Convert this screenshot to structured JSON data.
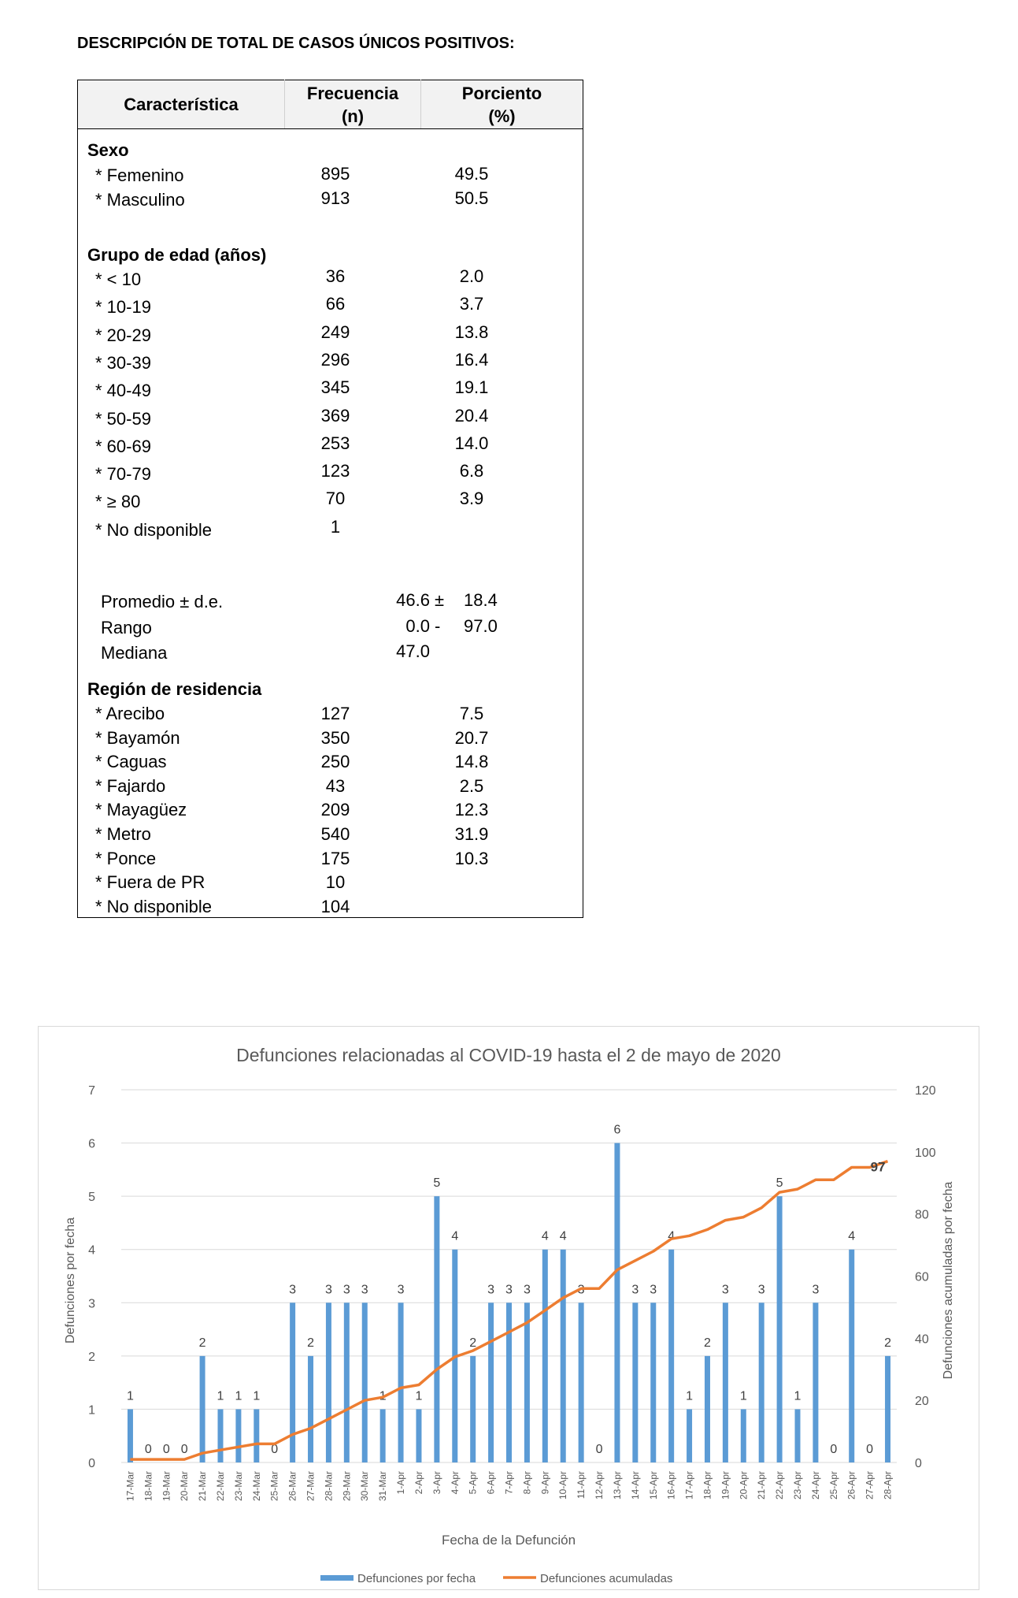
{
  "document": {
    "title": "DESCRIPCIÓN DE TOTAL DE CASOS ÚNICOS POSITIVOS:"
  },
  "table": {
    "headers": {
      "characteristic": "Característica",
      "frequency_line1": "Frecuencia",
      "frequency_line2": "(n)",
      "percent_line1": "Porciento",
      "percent_line2": "(%)"
    },
    "sexo": {
      "heading": "Sexo",
      "rows": [
        {
          "label": "* Femenino",
          "n": "895",
          "pct": "49.5"
        },
        {
          "label": "* Masculino",
          "n": "913",
          "pct": "50.5"
        }
      ]
    },
    "edad": {
      "heading": "Grupo de edad (años)",
      "rows": [
        {
          "label": "* < 10",
          "n": "36",
          "pct": "2.0"
        },
        {
          "label": "* 10-19",
          "n": "66",
          "pct": "3.7"
        },
        {
          "label": "* 20-29",
          "n": "249",
          "pct": "13.8"
        },
        {
          "label": "* 30-39",
          "n": "296",
          "pct": "16.4"
        },
        {
          "label": "* 40-49",
          "n": "345",
          "pct": "19.1"
        },
        {
          "label": "* 50-59",
          "n": "369",
          "pct": "20.4"
        },
        {
          "label": "* 60-69",
          "n": "253",
          "pct": "14.0"
        },
        {
          "label": "* 70-79",
          "n": "123",
          "pct": "6.8"
        },
        {
          "label": "* ≥ 80",
          "n": "70",
          "pct": "3.9"
        },
        {
          "label": "* No disponible",
          "n": "1",
          "pct": ""
        }
      ],
      "stats": [
        {
          "label": "Promedio ± d.e.",
          "a": "46.6",
          "sep": "±",
          "b": "18.4"
        },
        {
          "label": "Rango",
          "a": "0.0",
          "sep": "-",
          "b": "97.0"
        },
        {
          "label": "Mediana",
          "a": "47.0",
          "sep": "",
          "b": ""
        }
      ]
    },
    "region": {
      "heading": "Región de residencia",
      "rows": [
        {
          "label": "* Arecibo",
          "n": "127",
          "pct": "7.5"
        },
        {
          "label": "* Bayamón",
          "n": "350",
          "pct": "20.7"
        },
        {
          "label": "* Caguas",
          "n": "250",
          "pct": "14.8"
        },
        {
          "label": "* Fajardo",
          "n": "43",
          "pct": "2.5"
        },
        {
          "label": "* Mayagüez",
          "n": "209",
          "pct": "12.3"
        },
        {
          "label": "* Metro",
          "n": "540",
          "pct": "31.9"
        },
        {
          "label": "* Ponce",
          "n": "175",
          "pct": "10.3"
        },
        {
          "label": "* Fuera de PR",
          "n": "10",
          "pct": ""
        },
        {
          "label": "* No disponible",
          "n": "104",
          "pct": ""
        }
      ]
    }
  },
  "chart_data": {
    "type": "bar",
    "title": "Defunciones relacionadas al COVID-19 hasta el 2 de mayo de 2020",
    "xlabel": "Fecha de la Defunción",
    "ylabel": "Defunciones por fecha",
    "y2label": "Defunciones acumuladas por fecha",
    "ylim": [
      0,
      7
    ],
    "y2lim": [
      0,
      120
    ],
    "yticks": [
      "0",
      "1",
      "2",
      "3",
      "4",
      "5",
      "6",
      "7"
    ],
    "y2ticks": [
      "0",
      "20",
      "40",
      "60",
      "80",
      "100",
      "120"
    ],
    "grid": true,
    "legend_position": "bottom",
    "categories": [
      "17-Mar",
      "18-Mar",
      "19-Mar",
      "20-Mar",
      "21-Mar",
      "22-Mar",
      "23-Mar",
      "24-Mar",
      "25-Mar",
      "26-Mar",
      "27-Mar",
      "28-Mar",
      "29-Mar",
      "30-Mar",
      "31-Mar",
      "1-Apr",
      "2-Apr",
      "3-Apr",
      "4-Apr",
      "5-Apr",
      "6-Apr",
      "7-Apr",
      "8-Apr",
      "9-Apr",
      "10-Apr",
      "11-Apr",
      "12-Apr",
      "13-Apr",
      "14-Apr",
      "15-Apr",
      "16-Apr",
      "17-Apr",
      "18-Apr",
      "19-Apr",
      "20-Apr",
      "21-Apr",
      "22-Apr",
      "23-Apr",
      "24-Apr",
      "25-Apr",
      "26-Apr",
      "27-Apr",
      "28-Apr"
    ],
    "series": [
      {
        "name": "Defunciones por fecha",
        "type": "bar",
        "axis": "left",
        "color": "#5b9bd5",
        "values": [
          1,
          0,
          0,
          0,
          2,
          1,
          1,
          1,
          0,
          3,
          2,
          3,
          3,
          3,
          1,
          3,
          1,
          5,
          4,
          2,
          3,
          3,
          3,
          4,
          4,
          3,
          0,
          6,
          3,
          3,
          4,
          1,
          2,
          3,
          1,
          3,
          5,
          1,
          3,
          0,
          4,
          0,
          2
        ]
      },
      {
        "name": "Defunciones acumuladas",
        "type": "line",
        "axis": "right",
        "color": "#ed7d31",
        "values": [
          1,
          1,
          1,
          1,
          3,
          4,
          5,
          6,
          6,
          9,
          11,
          14,
          17,
          20,
          21,
          24,
          25,
          30,
          34,
          36,
          39,
          42,
          45,
          49,
          53,
          56,
          56,
          62,
          65,
          68,
          72,
          73,
          75,
          78,
          79,
          82,
          87,
          88,
          91,
          91,
          95,
          95,
          97
        ]
      }
    ],
    "annotation_last": "97"
  }
}
